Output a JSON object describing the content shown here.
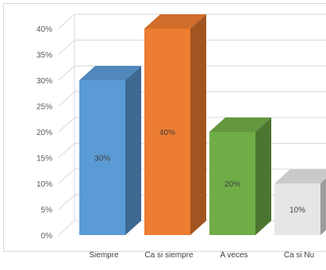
{
  "chart_data": {
    "type": "bar",
    "style": "3d-column",
    "categories": [
      "Siempre",
      "Casi siempre",
      "A veces",
      "Casi Nunca"
    ],
    "category_labels_shown": [
      "Siempre",
      "Ca si siempre",
      "A veces",
      "Ca si Nu"
    ],
    "values": [
      30,
      40,
      20,
      10
    ],
    "data_labels": [
      "30%",
      "40%",
      "20%",
      "10%"
    ],
    "ylim": [
      0,
      40
    ],
    "yticks": [
      "0%",
      "5%",
      "10%",
      "15%",
      "20%",
      "25%",
      "30%",
      "35%",
      "40%"
    ],
    "grid": true,
    "legend": "none",
    "colors": [
      "#5b9bd5",
      "#ed7d31",
      "#70ad47",
      "#e7e6e6"
    ]
  }
}
